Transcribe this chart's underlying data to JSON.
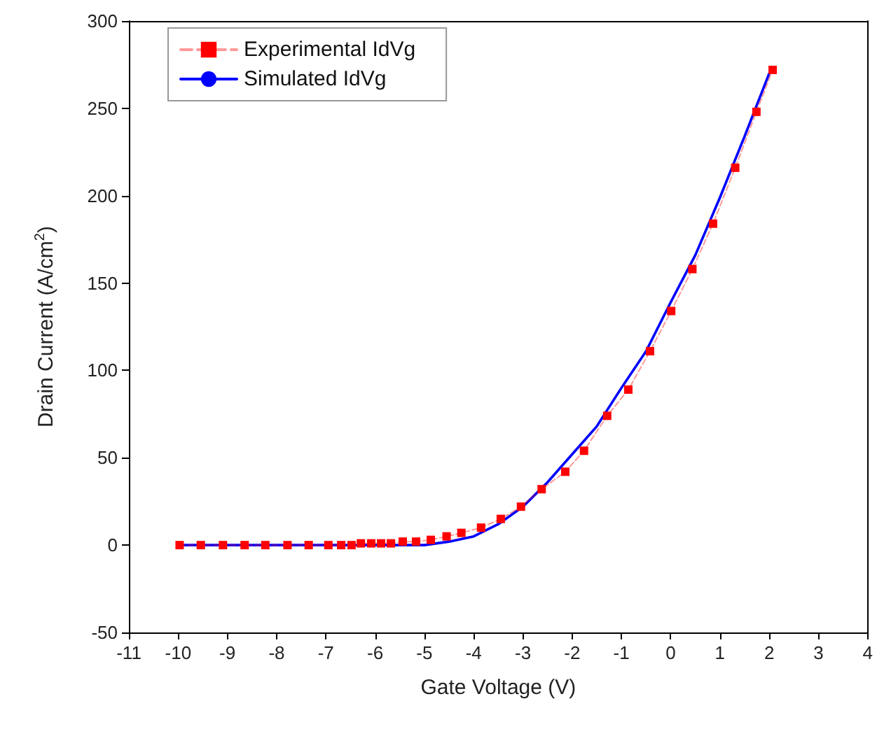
{
  "chart_data": {
    "type": "line",
    "xlabel": "Gate Voltage (V)",
    "ylabel": "Drain Current (A/cm$^{2}$)",
    "xlim": [
      -11,
      4
    ],
    "xticks": [
      -11,
      -10,
      -9,
      -8,
      -7,
      -6,
      -5,
      -4,
      -3,
      -2,
      -1,
      0,
      1,
      2,
      3,
      4
    ],
    "ylim": [
      -50,
      300
    ],
    "yticks": [
      -50,
      0,
      50,
      100,
      150,
      200,
      250,
      300
    ],
    "grid": false,
    "legend": "top left",
    "series": [
      {
        "name": "Experimental IdVg",
        "color": "#ff0000",
        "marker": "square",
        "line_style": "dashed",
        "x": [
          -9.97,
          -9.54,
          -9.09,
          -8.65,
          -8.23,
          -7.78,
          -7.35,
          -6.95,
          -6.69,
          -6.48,
          -6.29,
          -6.08,
          -5.88,
          -5.68,
          -5.44,
          -5.17,
          -4.87,
          -4.55,
          -4.25,
          -3.85,
          -3.45,
          -3.04,
          -2.62,
          -2.14,
          -1.76,
          -1.29,
          -0.86,
          -0.42,
          0.01,
          0.44,
          0.86,
          1.31,
          1.74,
          2.07
        ],
        "values": [
          0,
          0,
          0,
          0,
          0,
          0,
          0,
          0,
          0,
          0,
          1,
          1,
          1,
          1,
          2,
          2,
          3,
          5,
          7,
          10,
          15,
          22,
          32,
          42,
          54,
          74,
          89,
          111,
          134,
          158,
          184,
          216,
          248,
          272
        ]
      },
      {
        "name": "Simulated IdVg",
        "color": "#0000ff",
        "marker": "none",
        "line_style": "solid",
        "x": [
          -10,
          -9,
          -8,
          -7,
          -6,
          -5.5,
          -5,
          -4.5,
          -4,
          -3.5,
          -3,
          -2.5,
          -2,
          -1.5,
          -1,
          -0.5,
          0,
          0.5,
          1,
          1.5,
          2,
          2.07
        ],
        "values": [
          0,
          0,
          0,
          0,
          0,
          0,
          0,
          2,
          5,
          12,
          22,
          36,
          52,
          68,
          90,
          111,
          139,
          166,
          199,
          234,
          270,
          273
        ]
      }
    ]
  }
}
